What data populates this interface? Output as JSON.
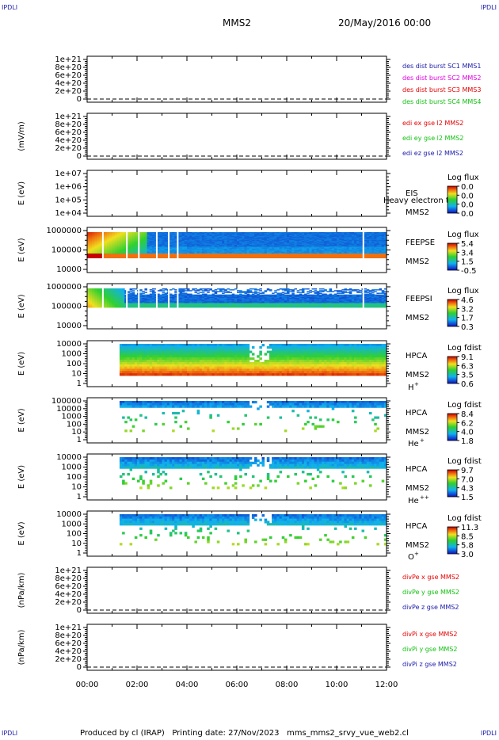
{
  "corner_marks": {
    "top_left": "IPDLI",
    "top_right": "IPDLI",
    "bottom_left": "IPDLI",
    "bottom_right": "IPDLI"
  },
  "header": {
    "spacecraft": "MMS2",
    "date": "20/May/2016 00:00"
  },
  "footer": {
    "text": "Produced by cl (IRAP)   Printing date: 27/Nov/2023   mms_mms2_srvy_vue_web2.cl"
  },
  "colors": {
    "red": "#e60000",
    "magenta": "#e000e0",
    "green": "#10c010",
    "blue": "#1a1aa8",
    "dash": "#000000"
  },
  "chart_data": {
    "type": "multi-panel time series",
    "time_axis": {
      "range": [
        "00:00",
        "12:00"
      ],
      "ticks": [
        "00:00",
        "02:00",
        "04:00",
        "06:00",
        "08:00",
        "10:00",
        "12:00"
      ]
    },
    "panels": [
      {
        "id": "p1",
        "kind": "line",
        "ylabel": "",
        "yticks": [
          "1e+21",
          "8e+20",
          "6e+20",
          "4e+20",
          "2e+20",
          "0"
        ],
        "legend": [
          {
            "text": "des dist burst SC1 MMS1",
            "color": "#1a1aa8"
          },
          {
            "text": "des dist burst SC2 MMS2",
            "color": "#e000e0"
          },
          {
            "text": "des dist burst SC3 MMS3",
            "color": "#e60000"
          },
          {
            "text": "des dist burst SC4 MMS4",
            "color": "#10c010"
          }
        ]
      },
      {
        "id": "p2",
        "kind": "line",
        "ylabel": "(mV/m)",
        "yticks": [
          "1e+21",
          "8e+20",
          "6e+20",
          "4e+20",
          "2e+20",
          "0"
        ],
        "legend": [
          {
            "text": "edi ex gse l2 MMS2",
            "color": "#e60000"
          },
          {
            "text": "edi ey gse l2 MMS2",
            "color": "#10c010"
          },
          {
            "text": "edi ez gse l2 MMS2",
            "color": "#1a1aa8"
          }
        ]
      },
      {
        "id": "p3",
        "kind": "spectrogram",
        "ylabel": "E (eV)",
        "yticks": [
          "1e+07",
          "1e+06",
          "1e+05",
          "1e+04"
        ],
        "right_labels": [
          "EIS",
          "MMS2"
        ],
        "overlay": "Heavy electron to",
        "cbar": {
          "title": "Log flux",
          "ticks": [
            "0.0",
            "0.0",
            "0.0",
            "0.0"
          ]
        }
      },
      {
        "id": "p4",
        "kind": "spectrogram",
        "ylabel": "E (eV)",
        "yticks": [
          "1000000",
          "100000",
          "10000"
        ],
        "right_labels": [
          "FEEPSE",
          "MMS2"
        ],
        "cbar": {
          "title": "Log flux",
          "ticks": [
            "5.4",
            "3.4",
            "1.5",
            "-0.5"
          ]
        }
      },
      {
        "id": "p5",
        "kind": "spectrogram",
        "ylabel": "E (eV)",
        "yticks": [
          "1000000",
          "100000",
          "10000"
        ],
        "right_labels": [
          "FEEPSI",
          "MMS2"
        ],
        "cbar": {
          "title": "Log flux",
          "ticks": [
            "4.6",
            "3.2",
            "1.7",
            "0.3"
          ]
        }
      },
      {
        "id": "p6",
        "kind": "spectrogram",
        "ylabel": "E (eV)",
        "yticks": [
          "10000",
          "1000",
          "100",
          "10",
          "1"
        ],
        "right_labels": [
          "HPCA",
          "MMS2"
        ],
        "species": "H",
        "species_sup": "+",
        "cbar": {
          "title": "Log fdist",
          "ticks": [
            "9.1",
            "6.3",
            "3.5",
            "0.6"
          ]
        }
      },
      {
        "id": "p7",
        "kind": "spectrogram",
        "ylabel": "E (eV)",
        "yticks": [
          "100000",
          "10000",
          "1000",
          "100",
          "10",
          "1"
        ],
        "right_labels": [
          "HPCA",
          "MMS2"
        ],
        "species": "He",
        "species_sup": "+",
        "cbar": {
          "title": "Log fdist",
          "ticks": [
            "8.4",
            "6.2",
            "4.0",
            "1.8"
          ]
        }
      },
      {
        "id": "p8",
        "kind": "spectrogram",
        "ylabel": "E (eV)",
        "yticks": [
          "10000",
          "1000",
          "100",
          "10",
          "1"
        ],
        "right_labels": [
          "HPCA",
          "MMS2"
        ],
        "species": "He",
        "species_sup": "++",
        "cbar": {
          "title": "Log fdist",
          "ticks": [
            "9.7",
            "7.0",
            "4.3",
            "1.5"
          ]
        }
      },
      {
        "id": "p9",
        "kind": "spectrogram",
        "ylabel": "E (eV)",
        "yticks": [
          "10000",
          "1000",
          "100",
          "10",
          "1"
        ],
        "right_labels": [
          "HPCA",
          "MMS2"
        ],
        "species": "O",
        "species_sup": "+",
        "cbar": {
          "title": "Log fdist",
          "ticks": [
            "11.3",
            "8.5",
            "5.8",
            "3.0"
          ]
        }
      },
      {
        "id": "p10",
        "kind": "line",
        "ylabel": "(nPa/km)",
        "yticks": [
          "1e+21",
          "8e+20",
          "6e+20",
          "4e+20",
          "2e+20",
          "0"
        ],
        "legend": [
          {
            "text": "divPe x gse MMS2",
            "color": "#e60000"
          },
          {
            "text": "divPe y gse MMS2",
            "color": "#10c010"
          },
          {
            "text": "divPe z gse MMS2",
            "color": "#1a1aa8"
          }
        ]
      },
      {
        "id": "p11",
        "kind": "line",
        "ylabel": "(nPa/km)",
        "yticks": [
          "1e+21",
          "8e+20",
          "6e+20",
          "4e+20",
          "2e+20",
          "0"
        ],
        "legend": [
          {
            "text": "divPi x gse MMS2",
            "color": "#e60000"
          },
          {
            "text": "divPi y gse MMS2",
            "color": "#10c010"
          },
          {
            "text": "divPi z gse MMS2",
            "color": "#1a1aa8"
          }
        ]
      }
    ]
  }
}
